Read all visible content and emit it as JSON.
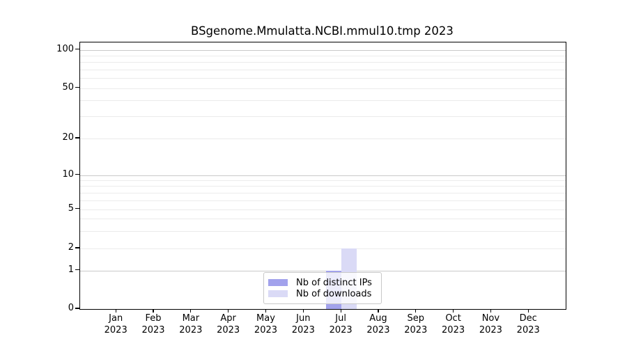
{
  "chart_data": {
    "type": "bar",
    "title": "BSgenome.Mmulatta.NCBI.mmul10.tmp 2023",
    "x_year": "2023",
    "categories": [
      "Jan",
      "Feb",
      "Mar",
      "Apr",
      "May",
      "Jun",
      "Jul",
      "Aug",
      "Sep",
      "Oct",
      "Nov",
      "Dec"
    ],
    "series": [
      {
        "name": "Nb of distinct IPs",
        "color": "#a2a2ec",
        "values": [
          0,
          0,
          0,
          0,
          0,
          0,
          1,
          0,
          0,
          0,
          0,
          0
        ]
      },
      {
        "name": "Nb of downloads",
        "color": "#dadaf6",
        "values": [
          0,
          0,
          0,
          0,
          0,
          0,
          2,
          0,
          0,
          0,
          0,
          0
        ]
      }
    ],
    "y_ticks": [
      0,
      1,
      2,
      5,
      10,
      20,
      50,
      100
    ],
    "y_gridlines_major": [
      1,
      10,
      100
    ],
    "y_gridlines_minor": [
      2,
      3,
      4,
      5,
      6,
      7,
      8,
      9,
      20,
      30,
      40,
      50,
      60,
      70,
      80,
      90
    ],
    "scale": "log-like (log1p), 0 pinned at baseline",
    "ylim": [
      0,
      115
    ],
    "grid": "horizontal",
    "legend_position": "bottom-center",
    "colors": {
      "axis": "#000000",
      "gridline_major": "#c9c9c9",
      "gridline_minor": "#ebebeb",
      "background": "#ffffff"
    }
  }
}
